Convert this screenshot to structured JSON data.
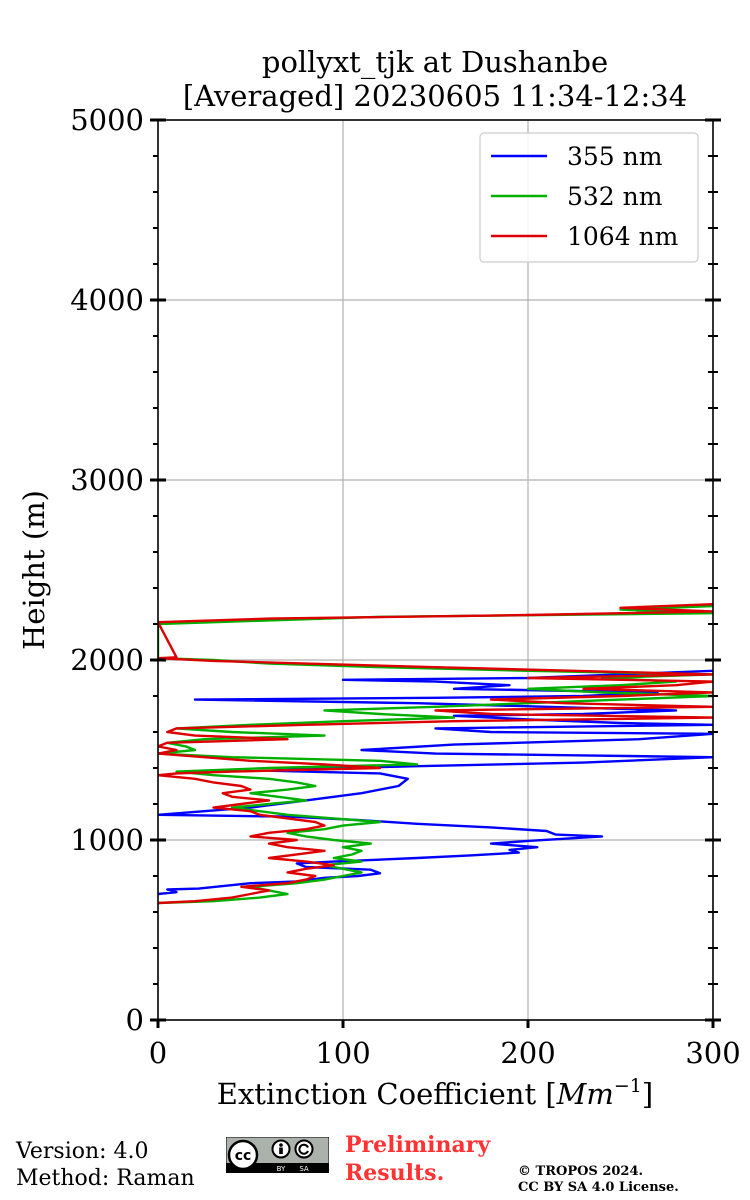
{
  "chart_data": {
    "type": "line",
    "title_line1": "pollyxt_tjk at Dushanbe",
    "title_line2": "[Averaged] 20230605 11:34-12:34",
    "xlabel_main": "Extinction Coefficient [",
    "xlabel_unit": "Mm",
    "xlabel_exp": "−1",
    "xlabel_close": "]",
    "ylabel": "Height (m)",
    "xlim": [
      0,
      300
    ],
    "ylim": [
      0,
      5000
    ],
    "xticks": [
      0,
      100,
      200,
      300
    ],
    "yticks": [
      0,
      1000,
      2000,
      3000,
      4000,
      5000
    ],
    "grid": true,
    "legend_position": "top-right",
    "series": [
      {
        "name": "355 nm",
        "color": "#0000ff",
        "points": [
          [
            0,
            700
          ],
          [
            10,
            710
          ],
          [
            5,
            725
          ],
          [
            22,
            730
          ],
          [
            50,
            760
          ],
          [
            75,
            770
          ],
          [
            90,
            790
          ],
          [
            108,
            800
          ],
          [
            120,
            815
          ],
          [
            115,
            835
          ],
          [
            80,
            850
          ],
          [
            75,
            870
          ],
          [
            95,
            880
          ],
          [
            140,
            900
          ],
          [
            170,
            915
          ],
          [
            195,
            930
          ],
          [
            190,
            945
          ],
          [
            205,
            960
          ],
          [
            180,
            980
          ],
          [
            200,
            995
          ],
          [
            240,
            1020
          ],
          [
            215,
            1030
          ],
          [
            210,
            1050
          ],
          [
            180,
            1070
          ],
          [
            140,
            1090
          ],
          [
            110,
            1110
          ],
          [
            70,
            1130
          ],
          [
            0,
            1140
          ],
          [
            50,
            1180
          ],
          [
            80,
            1220
          ],
          [
            110,
            1260
          ],
          [
            130,
            1300
          ],
          [
            135,
            1340
          ],
          [
            120,
            1370
          ],
          [
            60,
            1385
          ],
          [
            80,
            1395
          ],
          [
            140,
            1410
          ],
          [
            230,
            1430
          ],
          [
            300,
            1460
          ],
          [
            230,
            1470
          ],
          [
            150,
            1480
          ],
          [
            110,
            1500
          ],
          [
            160,
            1530
          ],
          [
            260,
            1560
          ],
          [
            300,
            1590
          ],
          [
            180,
            1600
          ],
          [
            150,
            1620
          ],
          [
            300,
            1640
          ],
          [
            250,
            1650
          ],
          [
            200,
            1670
          ],
          [
            160,
            1690
          ],
          [
            230,
            1700
          ],
          [
            280,
            1720
          ],
          [
            210,
            1740
          ],
          [
            140,
            1760
          ],
          [
            20,
            1780
          ],
          [
            150,
            1790
          ],
          [
            230,
            1800
          ],
          [
            270,
            1820
          ],
          [
            160,
            1840
          ],
          [
            190,
            1860
          ],
          [
            150,
            1880
          ],
          [
            100,
            1890
          ],
          [
            200,
            1900
          ],
          [
            250,
            1920
          ],
          [
            300,
            1940
          ]
        ]
      },
      {
        "name": "532 nm",
        "color": "#00b000",
        "points": [
          [
            0,
            650
          ],
          [
            30,
            660
          ],
          [
            55,
            680
          ],
          [
            70,
            700
          ],
          [
            60,
            720
          ],
          [
            50,
            740
          ],
          [
            75,
            760
          ],
          [
            90,
            780
          ],
          [
            100,
            800
          ],
          [
            110,
            820
          ],
          [
            100,
            840
          ],
          [
            90,
            860
          ],
          [
            110,
            880
          ],
          [
            95,
            900
          ],
          [
            105,
            920
          ],
          [
            110,
            940
          ],
          [
            100,
            960
          ],
          [
            115,
            980
          ],
          [
            95,
            1000
          ],
          [
            80,
            1020
          ],
          [
            70,
            1040
          ],
          [
            90,
            1060
          ],
          [
            100,
            1080
          ],
          [
            120,
            1100
          ],
          [
            95,
            1120
          ],
          [
            70,
            1140
          ],
          [
            55,
            1160
          ],
          [
            40,
            1180
          ],
          [
            60,
            1200
          ],
          [
            80,
            1220
          ],
          [
            65,
            1240
          ],
          [
            50,
            1260
          ],
          [
            70,
            1280
          ],
          [
            85,
            1300
          ],
          [
            75,
            1320
          ],
          [
            60,
            1340
          ],
          [
            30,
            1360
          ],
          [
            10,
            1380
          ],
          [
            60,
            1400
          ],
          [
            140,
            1420
          ],
          [
            120,
            1440
          ],
          [
            40,
            1460
          ],
          [
            0,
            1480
          ],
          [
            20,
            1500
          ],
          [
            15,
            1520
          ],
          [
            5,
            1540
          ],
          [
            25,
            1560
          ],
          [
            90,
            1580
          ],
          [
            40,
            1600
          ],
          [
            10,
            1620
          ],
          [
            50,
            1640
          ],
          [
            100,
            1660
          ],
          [
            160,
            1680
          ],
          [
            120,
            1700
          ],
          [
            90,
            1720
          ],
          [
            150,
            1740
          ],
          [
            200,
            1760
          ],
          [
            250,
            1780
          ],
          [
            300,
            1800
          ],
          [
            240,
            1820
          ],
          [
            200,
            1840
          ],
          [
            250,
            1860
          ],
          [
            280,
            1880
          ],
          [
            240,
            1900
          ],
          [
            300,
            1920
          ],
          [
            200,
            1940
          ],
          [
            120,
            1960
          ],
          [
            60,
            1980
          ],
          [
            30,
            2000
          ],
          [
            0,
            2010
          ],
          [
            0,
            2200
          ],
          [
            120,
            2240
          ],
          [
            300,
            2260
          ],
          [
            250,
            2280
          ],
          [
            300,
            2300
          ]
        ]
      },
      {
        "name": "1064 nm",
        "color": "#dd0000",
        "points": [
          [
            0,
            650
          ],
          [
            20,
            660
          ],
          [
            40,
            680
          ],
          [
            50,
            700
          ],
          [
            60,
            720
          ],
          [
            45,
            740
          ],
          [
            70,
            760
          ],
          [
            80,
            780
          ],
          [
            85,
            800
          ],
          [
            70,
            820
          ],
          [
            80,
            840
          ],
          [
            95,
            860
          ],
          [
            80,
            880
          ],
          [
            60,
            900
          ],
          [
            75,
            920
          ],
          [
            90,
            940
          ],
          [
            70,
            960
          ],
          [
            60,
            980
          ],
          [
            75,
            1000
          ],
          [
            50,
            1020
          ],
          [
            60,
            1040
          ],
          [
            80,
            1060
          ],
          [
            90,
            1080
          ],
          [
            85,
            1100
          ],
          [
            70,
            1120
          ],
          [
            55,
            1140
          ],
          [
            50,
            1160
          ],
          [
            30,
            1180
          ],
          [
            45,
            1200
          ],
          [
            60,
            1220
          ],
          [
            40,
            1240
          ],
          [
            35,
            1260
          ],
          [
            50,
            1280
          ],
          [
            45,
            1300
          ],
          [
            30,
            1320
          ],
          [
            20,
            1340
          ],
          [
            0,
            1360
          ],
          [
            10,
            1370
          ],
          [
            40,
            1380
          ],
          [
            120,
            1400
          ],
          [
            90,
            1420
          ],
          [
            50,
            1440
          ],
          [
            0,
            1480
          ],
          [
            10,
            1500
          ],
          [
            0,
            1520
          ],
          [
            5,
            1540
          ],
          [
            70,
            1560
          ],
          [
            20,
            1580
          ],
          [
            5,
            1600
          ],
          [
            10,
            1620
          ],
          [
            80,
            1640
          ],
          [
            160,
            1660
          ],
          [
            300,
            1680
          ],
          [
            180,
            1700
          ],
          [
            150,
            1720
          ],
          [
            300,
            1740
          ],
          [
            220,
            1760
          ],
          [
            180,
            1780
          ],
          [
            250,
            1800
          ],
          [
            300,
            1820
          ],
          [
            230,
            1840
          ],
          [
            280,
            1860
          ],
          [
            300,
            1880
          ],
          [
            200,
            1900
          ],
          [
            300,
            1920
          ],
          [
            150,
            1960
          ],
          [
            80,
            1980
          ],
          [
            30,
            1995
          ],
          [
            0,
            2010
          ],
          [
            10,
            2015
          ],
          [
            0,
            2210
          ],
          [
            60,
            2230
          ],
          [
            200,
            2250
          ],
          [
            300,
            2270
          ],
          [
            250,
            2290
          ],
          [
            300,
            2310
          ]
        ]
      }
    ]
  },
  "footer": {
    "version": "Version: 4.0",
    "method": "Method: Raman",
    "preliminary_line1": "Preliminary",
    "preliminary_line2": "Results.",
    "copyright_line1": "© TROPOS 2024.",
    "copyright_line2": "CC BY SA 4.0 License.",
    "cc_logo_text": "cc",
    "cc_by": "BY",
    "cc_sa": "SA"
  }
}
